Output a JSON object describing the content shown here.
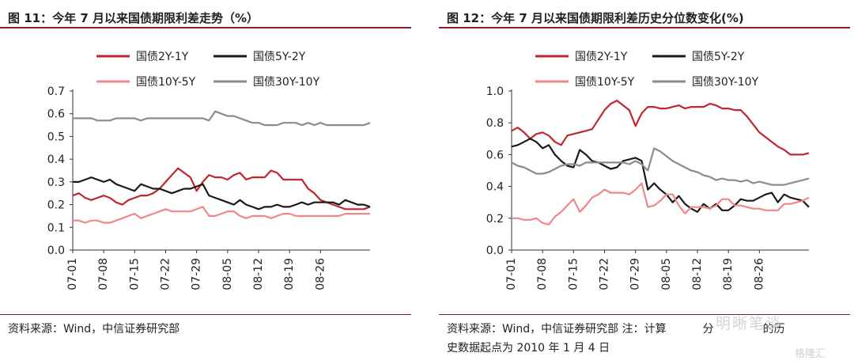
{
  "left": {
    "title": "图 11：今年 7 月以来国债期限利差走势（%）",
    "source": "资料来源：Wind，中信证券研究部",
    "chart_data": {
      "type": "line",
      "ylim": [
        0.0,
        0.7
      ],
      "yticks": [
        "0.0",
        "0.1",
        "0.2",
        "0.3",
        "0.4",
        "0.5",
        "0.6",
        "0.7"
      ],
      "xticks": [
        "07-01",
        "07-08",
        "07-15",
        "07-22",
        "07-29",
        "08-05",
        "08-12",
        "08-19",
        "08-26"
      ],
      "legend_placement": "top",
      "series": [
        {
          "name": "国债2Y-1Y",
          "color": "#c0262d",
          "values": [
            0.24,
            0.25,
            0.23,
            0.22,
            0.23,
            0.24,
            0.23,
            0.21,
            0.2,
            0.22,
            0.23,
            0.24,
            0.24,
            0.25,
            0.27,
            0.3,
            0.33,
            0.36,
            0.34,
            0.32,
            0.26,
            0.3,
            0.33,
            0.32,
            0.32,
            0.31,
            0.33,
            0.34,
            0.31,
            0.32,
            0.32,
            0.32,
            0.35,
            0.34,
            0.31,
            0.31,
            0.31,
            0.31,
            0.27,
            0.25,
            0.22,
            0.21,
            0.2,
            0.19,
            0.18,
            0.18,
            0.18,
            0.18,
            0.19
          ]
        },
        {
          "name": "国债5Y-2Y",
          "color": "#1a1a1a",
          "values": [
            0.3,
            0.3,
            0.31,
            0.32,
            0.31,
            0.3,
            0.31,
            0.29,
            0.28,
            0.27,
            0.26,
            0.29,
            0.28,
            0.27,
            0.27,
            0.26,
            0.25,
            0.26,
            0.27,
            0.27,
            0.28,
            0.29,
            0.24,
            0.23,
            0.22,
            0.21,
            0.2,
            0.22,
            0.2,
            0.19,
            0.18,
            0.19,
            0.19,
            0.2,
            0.19,
            0.19,
            0.2,
            0.21,
            0.2,
            0.21,
            0.21,
            0.21,
            0.21,
            0.2,
            0.22,
            0.21,
            0.2,
            0.2,
            0.19
          ]
        },
        {
          "name": "国债10Y-5Y",
          "color": "#f0878b",
          "values": [
            0.13,
            0.13,
            0.12,
            0.13,
            0.13,
            0.12,
            0.12,
            0.13,
            0.14,
            0.15,
            0.16,
            0.14,
            0.15,
            0.16,
            0.17,
            0.18,
            0.17,
            0.17,
            0.17,
            0.17,
            0.18,
            0.19,
            0.15,
            0.15,
            0.16,
            0.17,
            0.17,
            0.15,
            0.14,
            0.15,
            0.15,
            0.15,
            0.14,
            0.15,
            0.16,
            0.16,
            0.15,
            0.15,
            0.15,
            0.15,
            0.15,
            0.15,
            0.15,
            0.15,
            0.16,
            0.16,
            0.16,
            0.16,
            0.16
          ]
        },
        {
          "name": "国债30Y-10Y",
          "color": "#8c8c8c",
          "values": [
            0.58,
            0.58,
            0.58,
            0.58,
            0.57,
            0.57,
            0.57,
            0.58,
            0.58,
            0.58,
            0.58,
            0.57,
            0.58,
            0.58,
            0.58,
            0.58,
            0.58,
            0.58,
            0.58,
            0.58,
            0.58,
            0.58,
            0.57,
            0.61,
            0.6,
            0.59,
            0.59,
            0.58,
            0.57,
            0.56,
            0.56,
            0.55,
            0.55,
            0.55,
            0.56,
            0.56,
            0.56,
            0.55,
            0.56,
            0.55,
            0.56,
            0.55,
            0.55,
            0.55,
            0.55,
            0.55,
            0.55,
            0.55,
            0.56
          ]
        }
      ]
    }
  },
  "right": {
    "title": "图 12：今年 7 月以来国债期限利差历史分位数变化(%)",
    "source_line1": "资料来源：Wind，中信证券研究部 注：计算",
    "source_line1_tail": "分",
    "source_line1_end": "的历",
    "source_line2": "史数据起点为 2010 年 1 月 4 日",
    "chart_data": {
      "type": "line",
      "ylim": [
        0.0,
        1.0
      ],
      "yticks": [
        "0.0",
        "0.2",
        "0.4",
        "0.6",
        "0.8",
        "1.0"
      ],
      "xticks": [
        "07-01",
        "07-08",
        "07-15",
        "07-22",
        "07-29",
        "08-05",
        "08-12",
        "08-19",
        "08-26"
      ],
      "legend_placement": "top",
      "series": [
        {
          "name": "国债2Y-1Y",
          "color": "#c0262d",
          "values": [
            0.75,
            0.77,
            0.74,
            0.7,
            0.73,
            0.74,
            0.72,
            0.68,
            0.66,
            0.72,
            0.73,
            0.74,
            0.75,
            0.76,
            0.82,
            0.88,
            0.92,
            0.94,
            0.91,
            0.88,
            0.78,
            0.86,
            0.9,
            0.9,
            0.89,
            0.89,
            0.9,
            0.91,
            0.89,
            0.9,
            0.9,
            0.9,
            0.92,
            0.91,
            0.89,
            0.89,
            0.88,
            0.88,
            0.84,
            0.79,
            0.74,
            0.71,
            0.68,
            0.65,
            0.63,
            0.6,
            0.6,
            0.6,
            0.61
          ]
        },
        {
          "name": "国债5Y-2Y",
          "color": "#1a1a1a",
          "values": [
            0.65,
            0.66,
            0.68,
            0.7,
            0.68,
            0.64,
            0.66,
            0.6,
            0.56,
            0.53,
            0.52,
            0.63,
            0.6,
            0.56,
            0.55,
            0.53,
            0.51,
            0.52,
            0.56,
            0.57,
            0.58,
            0.56,
            0.38,
            0.42,
            0.38,
            0.35,
            0.3,
            0.34,
            0.29,
            0.26,
            0.24,
            0.29,
            0.26,
            0.29,
            0.25,
            0.25,
            0.28,
            0.32,
            0.31,
            0.31,
            0.33,
            0.35,
            0.36,
            0.3,
            0.35,
            0.33,
            0.32,
            0.31,
            0.27
          ]
        },
        {
          "name": "国债10Y-5Y",
          "color": "#f0878b",
          "values": [
            0.2,
            0.2,
            0.19,
            0.19,
            0.2,
            0.17,
            0.16,
            0.21,
            0.24,
            0.28,
            0.32,
            0.24,
            0.28,
            0.33,
            0.35,
            0.38,
            0.36,
            0.36,
            0.36,
            0.35,
            0.38,
            0.42,
            0.27,
            0.28,
            0.31,
            0.35,
            0.35,
            0.28,
            0.23,
            0.27,
            0.27,
            0.27,
            0.26,
            0.28,
            0.32,
            0.32,
            0.28,
            0.28,
            0.27,
            0.26,
            0.26,
            0.25,
            0.25,
            0.25,
            0.29,
            0.29,
            0.3,
            0.31,
            0.33
          ]
        },
        {
          "name": "国债30Y-10Y",
          "color": "#8c8c8c",
          "values": [
            0.55,
            0.53,
            0.52,
            0.5,
            0.48,
            0.48,
            0.49,
            0.51,
            0.53,
            0.54,
            0.54,
            0.53,
            0.55,
            0.55,
            0.55,
            0.55,
            0.55,
            0.55,
            0.55,
            0.54,
            0.56,
            0.54,
            0.5,
            0.64,
            0.62,
            0.59,
            0.56,
            0.54,
            0.52,
            0.5,
            0.49,
            0.47,
            0.46,
            0.44,
            0.45,
            0.44,
            0.44,
            0.43,
            0.44,
            0.42,
            0.43,
            0.42,
            0.41,
            0.41,
            0.41,
            0.42,
            0.43,
            0.44,
            0.45
          ]
        }
      ]
    }
  },
  "watermark": "明晰笔谈",
  "logo_text": "格隆汇"
}
